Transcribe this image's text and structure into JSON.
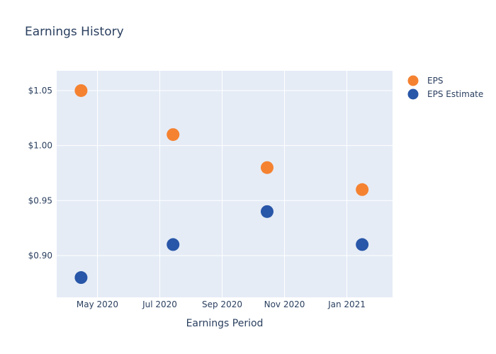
{
  "chart_data": {
    "type": "scatter",
    "title": "Earnings History",
    "xlabel": "Earnings Period",
    "ylabel": "",
    "x_ticks": [
      "May 2020",
      "Jul 2020",
      "Sep 2020",
      "Nov 2020",
      "Jan 2021"
    ],
    "y_ticks": [
      "$0.90",
      "$0.95",
      "$1.00",
      "$1.05"
    ],
    "ylim": [
      0.862,
      1.068
    ],
    "grid": true,
    "legend_position": "top-right",
    "series": [
      {
        "name": "EPS",
        "color": "#f58231",
        "x": [
          "2020-04-15",
          "2020-07-14",
          "2020-10-14",
          "2021-01-15"
        ],
        "y": [
          1.05,
          1.01,
          0.98,
          0.96
        ]
      },
      {
        "name": "EPS Estimate",
        "color": "#2856a8",
        "x": [
          "2020-04-15",
          "2020-07-14",
          "2020-10-14",
          "2021-01-15"
        ],
        "y": [
          0.88,
          0.91,
          0.94,
          0.91
        ]
      }
    ]
  }
}
